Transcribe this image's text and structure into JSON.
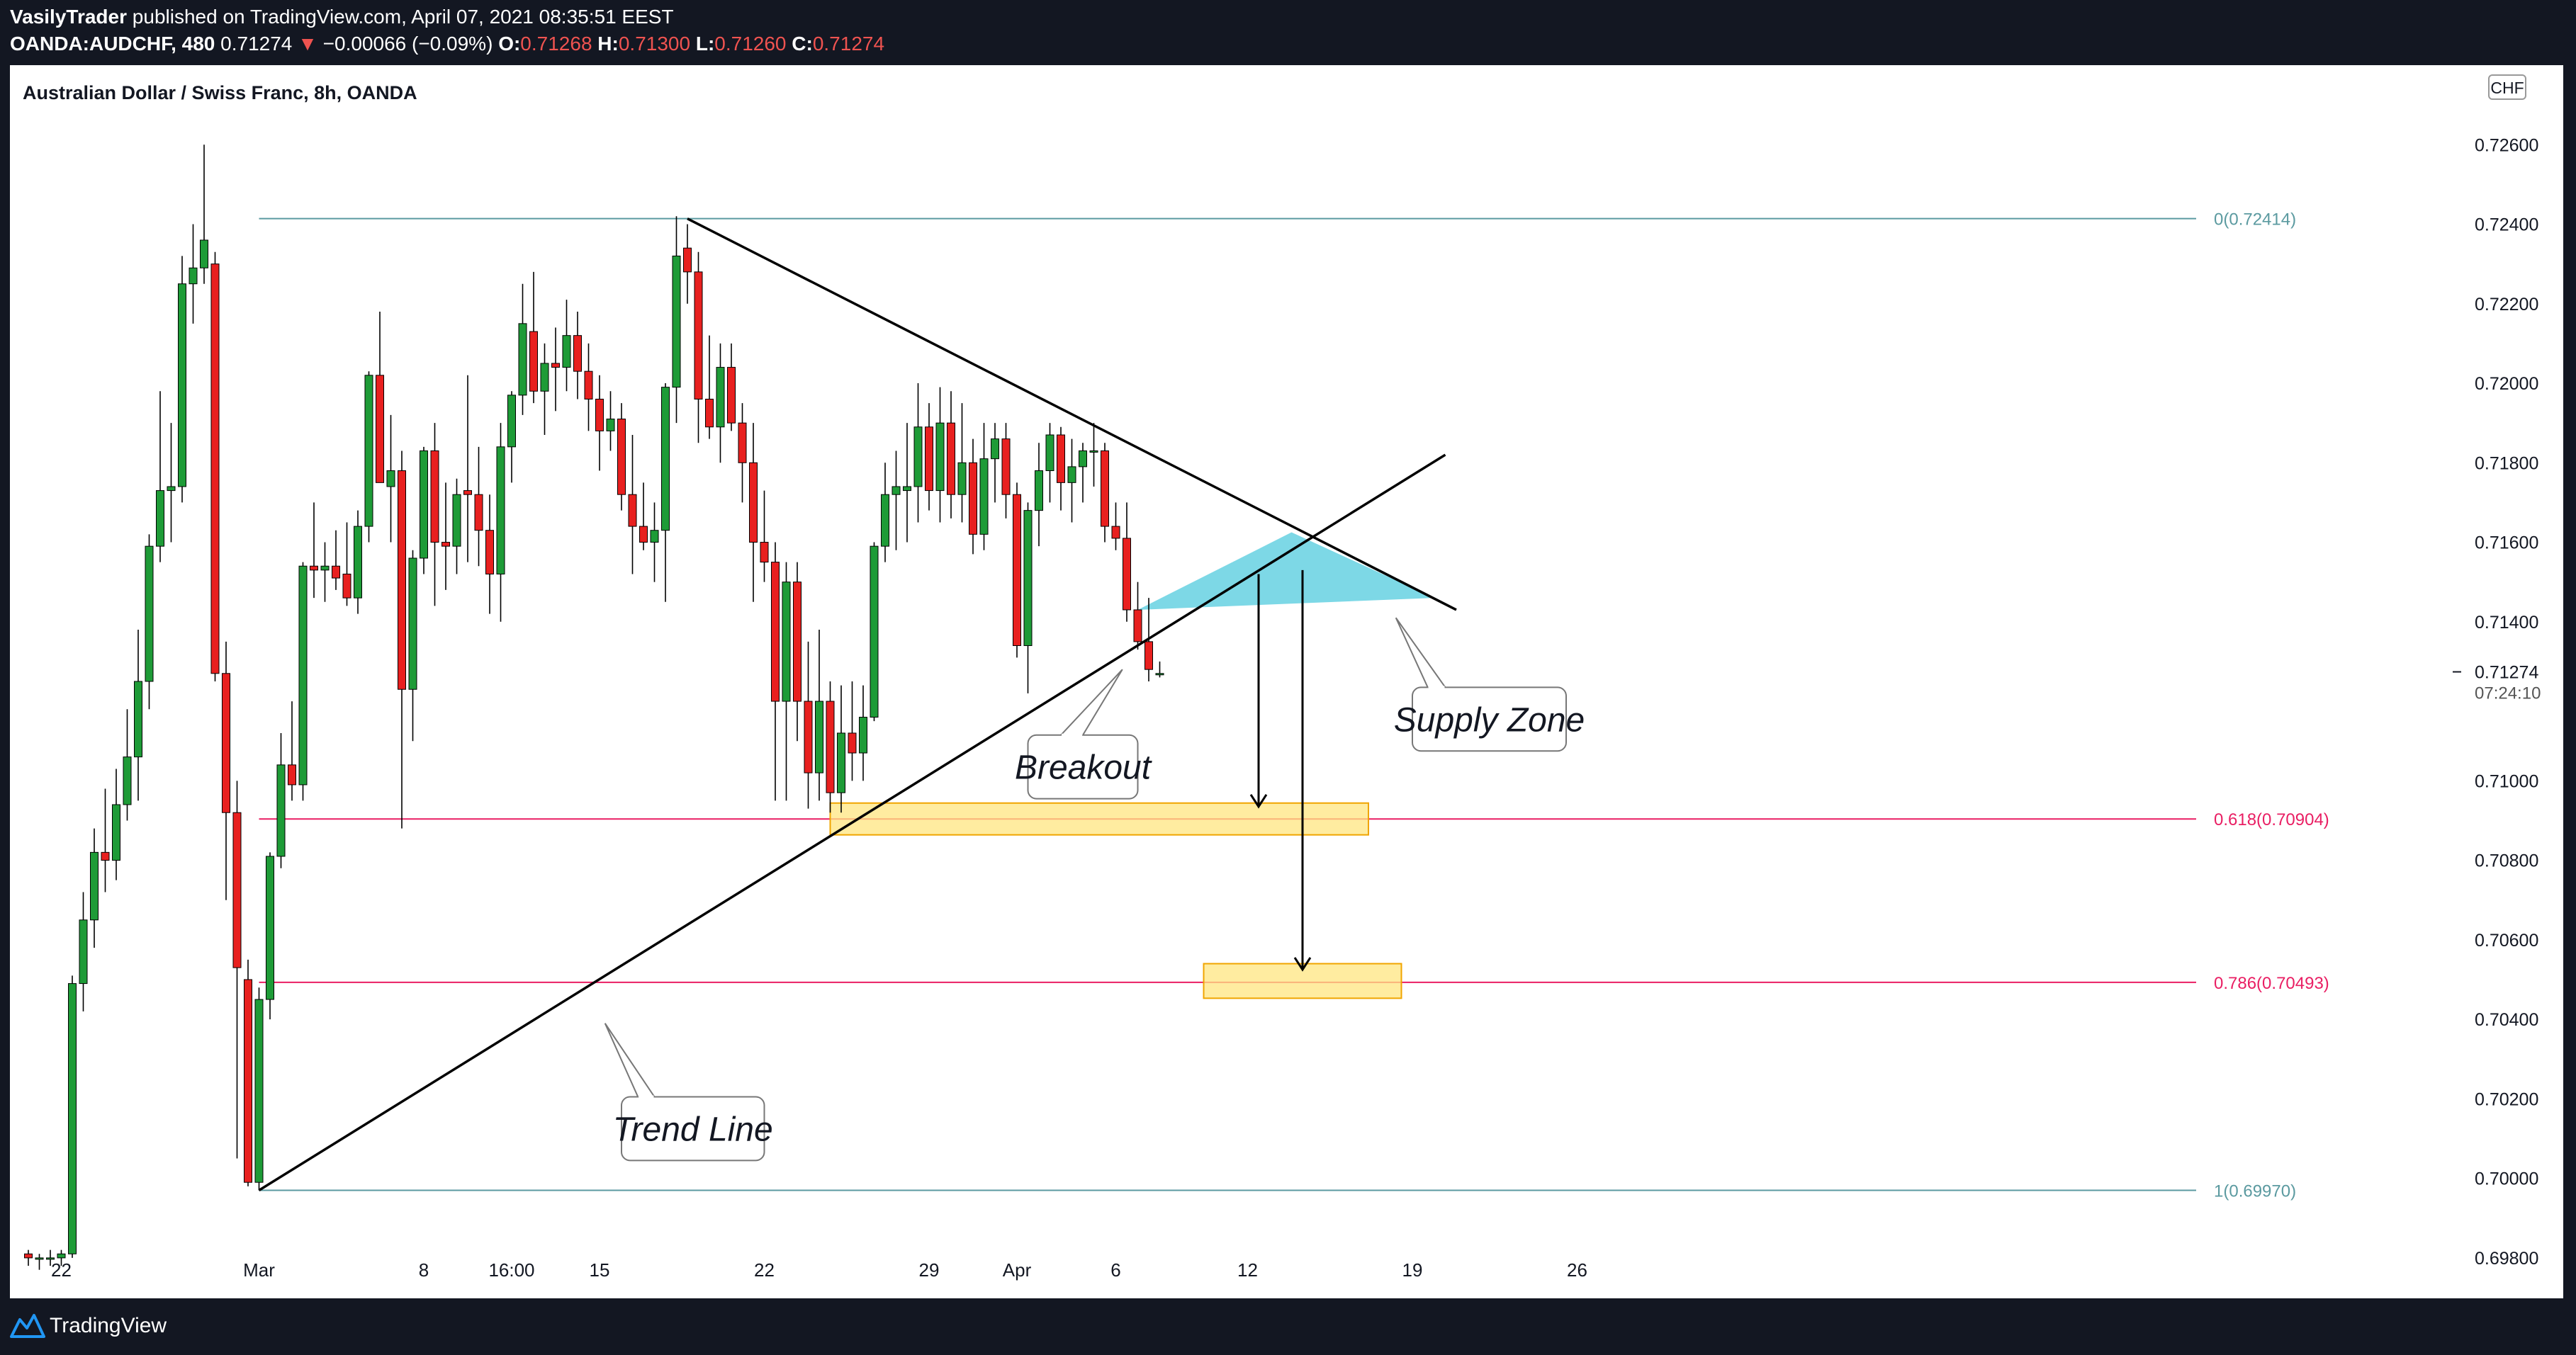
{
  "header": {
    "author": "VasilyTrader",
    "published": "published on TradingView.com, April 07, 2021 08:35:51 EEST",
    "symbol": "OANDA:AUDCHF, 480",
    "last": "0.71274",
    "change_arrow": "▼",
    "change": "−0.00066 (−0.09%)",
    "o_label": "O:",
    "o_value": "0.71268",
    "h_label": "H:",
    "h_value": "0.71300",
    "l_label": "L:",
    "l_value": "0.71260",
    "c_label": "C:",
    "c_value": "0.71274"
  },
  "footer": {
    "brand": "TradingView",
    "logo_icon": "tradingview-logo-icon"
  },
  "colors": {
    "up": "#1e9b37",
    "down": "#e8201f",
    "fib_mid": "#e91e63",
    "fib_edge": "#5b9aa0",
    "supply": "#7dd8e6",
    "target_fill": "#ffe680",
    "target_border": "#f0a500"
  },
  "chart_data": {
    "type": "candlestick",
    "title": "Australian Dollar / Swiss Franc, 8h, OANDA",
    "currency_badge": "CHF",
    "ylim": [
      0.697,
      0.728
    ],
    "y_ticks": [
      "0.72600",
      "0.72400",
      "0.72200",
      "0.72000",
      "0.71800",
      "0.71600",
      "0.71400",
      "0.71000",
      "0.70800",
      "0.70600",
      "0.70400",
      "0.70200",
      "0.70000",
      "0.69800"
    ],
    "x_ticks": [
      {
        "label": "22",
        "index": 3
      },
      {
        "label": "Mar",
        "index": 21
      },
      {
        "label": "8",
        "index": 36
      },
      {
        "label": "16:00",
        "index": 44
      },
      {
        "label": "15",
        "index": 52
      },
      {
        "label": "22",
        "index": 67
      },
      {
        "label": "29",
        "index": 82
      },
      {
        "label": "Apr",
        "index": 90
      },
      {
        "label": "6",
        "index": 99
      },
      {
        "label": "12",
        "index": 111
      },
      {
        "label": "19",
        "index": 126
      },
      {
        "label": "26",
        "index": 141
      }
    ],
    "last_price": {
      "value": 0.71274,
      "label": "0.71274",
      "countdown": "07:24:10"
    },
    "candles": [
      [
        0.6981,
        0.6982,
        0.6978,
        0.698
      ],
      [
        0.698,
        0.6981,
        0.6977,
        0.698
      ],
      [
        0.698,
        0.6982,
        0.6978,
        0.698
      ],
      [
        0.698,
        0.6982,
        0.6978,
        0.6981
      ],
      [
        0.6981,
        0.7051,
        0.698,
        0.7049
      ],
      [
        0.7049,
        0.7072,
        0.7042,
        0.7065
      ],
      [
        0.7065,
        0.7088,
        0.7058,
        0.7082
      ],
      [
        0.7082,
        0.7098,
        0.7072,
        0.708
      ],
      [
        0.708,
        0.7103,
        0.7075,
        0.7094
      ],
      [
        0.7094,
        0.7118,
        0.709,
        0.7106
      ],
      [
        0.7106,
        0.7138,
        0.7095,
        0.7125
      ],
      [
        0.7125,
        0.7162,
        0.7118,
        0.7159
      ],
      [
        0.7159,
        0.7198,
        0.7155,
        0.7173
      ],
      [
        0.7173,
        0.719,
        0.716,
        0.7174
      ],
      [
        0.7174,
        0.7232,
        0.717,
        0.7225
      ],
      [
        0.7225,
        0.724,
        0.7215,
        0.7229
      ],
      [
        0.7229,
        0.726,
        0.7225,
        0.7236
      ],
      [
        0.723,
        0.7233,
        0.7125,
        0.7127
      ],
      [
        0.7127,
        0.7135,
        0.707,
        0.7092
      ],
      [
        0.7092,
        0.71,
        0.7005,
        0.7053
      ],
      [
        0.705,
        0.7055,
        0.6998,
        0.6999
      ],
      [
        0.6999,
        0.7048,
        0.6997,
        0.7045
      ],
      [
        0.7045,
        0.7082,
        0.704,
        0.7081
      ],
      [
        0.7081,
        0.7112,
        0.7078,
        0.7104
      ],
      [
        0.7104,
        0.712,
        0.7095,
        0.7099
      ],
      [
        0.7099,
        0.7155,
        0.7095,
        0.7154
      ],
      [
        0.7154,
        0.717,
        0.7146,
        0.7153
      ],
      [
        0.7153,
        0.716,
        0.7145,
        0.7154
      ],
      [
        0.7154,
        0.7163,
        0.7148,
        0.7151
      ],
      [
        0.7152,
        0.7165,
        0.7144,
        0.7146
      ],
      [
        0.7146,
        0.7168,
        0.7142,
        0.7164
      ],
      [
        0.7164,
        0.7203,
        0.716,
        0.7202
      ],
      [
        0.7202,
        0.7218,
        0.7175,
        0.7175
      ],
      [
        0.7174,
        0.7192,
        0.716,
        0.7178
      ],
      [
        0.7178,
        0.7183,
        0.7088,
        0.7123
      ],
      [
        0.7123,
        0.7158,
        0.711,
        0.7156
      ],
      [
        0.7156,
        0.7184,
        0.7152,
        0.7183
      ],
      [
        0.7183,
        0.719,
        0.7144,
        0.716
      ],
      [
        0.716,
        0.7175,
        0.7148,
        0.7159
      ],
      [
        0.7159,
        0.7176,
        0.7152,
        0.7172
      ],
      [
        0.7173,
        0.7202,
        0.7155,
        0.7172
      ],
      [
        0.7172,
        0.7184,
        0.7154,
        0.7163
      ],
      [
        0.7163,
        0.7172,
        0.7142,
        0.7152
      ],
      [
        0.7152,
        0.719,
        0.714,
        0.7184
      ],
      [
        0.7184,
        0.7198,
        0.7175,
        0.7197
      ],
      [
        0.7197,
        0.7225,
        0.7192,
        0.7215
      ],
      [
        0.7213,
        0.7228,
        0.7195,
        0.7198
      ],
      [
        0.7198,
        0.721,
        0.7187,
        0.7205
      ],
      [
        0.7205,
        0.7214,
        0.7193,
        0.7204
      ],
      [
        0.7204,
        0.7221,
        0.7198,
        0.7212
      ],
      [
        0.7212,
        0.7218,
        0.7196,
        0.7203
      ],
      [
        0.7203,
        0.721,
        0.7188,
        0.7196
      ],
      [
        0.7196,
        0.7202,
        0.7178,
        0.7188
      ],
      [
        0.7188,
        0.7198,
        0.7183,
        0.7191
      ],
      [
        0.7191,
        0.7195,
        0.7168,
        0.7172
      ],
      [
        0.7172,
        0.7187,
        0.7152,
        0.7164
      ],
      [
        0.7164,
        0.7175,
        0.7158,
        0.716
      ],
      [
        0.716,
        0.717,
        0.715,
        0.7163
      ],
      [
        0.7163,
        0.72,
        0.7145,
        0.7199
      ],
      [
        0.7199,
        0.7242,
        0.719,
        0.7232
      ],
      [
        0.7234,
        0.724,
        0.722,
        0.7228
      ],
      [
        0.7228,
        0.7233,
        0.7185,
        0.7196
      ],
      [
        0.7196,
        0.7212,
        0.7186,
        0.7189
      ],
      [
        0.7189,
        0.721,
        0.718,
        0.7204
      ],
      [
        0.7204,
        0.721,
        0.7188,
        0.719
      ],
      [
        0.719,
        0.7195,
        0.717,
        0.718
      ],
      [
        0.718,
        0.719,
        0.7145,
        0.716
      ],
      [
        0.716,
        0.7173,
        0.715,
        0.7155
      ],
      [
        0.7155,
        0.716,
        0.7095,
        0.712
      ],
      [
        0.712,
        0.7155,
        0.7095,
        0.715
      ],
      [
        0.715,
        0.7155,
        0.711,
        0.712
      ],
      [
        0.712,
        0.7135,
        0.7093,
        0.7102
      ],
      [
        0.7102,
        0.7138,
        0.7095,
        0.712
      ],
      [
        0.712,
        0.7125,
        0.7092,
        0.7097
      ],
      [
        0.7097,
        0.7124,
        0.7092,
        0.7112
      ],
      [
        0.7112,
        0.7125,
        0.71,
        0.7107
      ],
      [
        0.7107,
        0.7124,
        0.71,
        0.7116
      ],
      [
        0.7116,
        0.716,
        0.7115,
        0.7159
      ],
      [
        0.7159,
        0.718,
        0.7155,
        0.7172
      ],
      [
        0.7172,
        0.7183,
        0.7158,
        0.7174
      ],
      [
        0.7173,
        0.719,
        0.716,
        0.7174
      ],
      [
        0.7174,
        0.72,
        0.7165,
        0.7189
      ],
      [
        0.7189,
        0.7195,
        0.7168,
        0.7173
      ],
      [
        0.7173,
        0.7199,
        0.7165,
        0.719
      ],
      [
        0.719,
        0.7198,
        0.7166,
        0.7172
      ],
      [
        0.7172,
        0.7195,
        0.7165,
        0.718
      ],
      [
        0.718,
        0.7186,
        0.7157,
        0.7162
      ],
      [
        0.7162,
        0.719,
        0.7158,
        0.7181
      ],
      [
        0.7181,
        0.719,
        0.717,
        0.7186
      ],
      [
        0.7186,
        0.719,
        0.7166,
        0.7172
      ],
      [
        0.7172,
        0.7175,
        0.7131,
        0.7134
      ],
      [
        0.7134,
        0.717,
        0.7122,
        0.7168
      ],
      [
        0.7168,
        0.7185,
        0.7159,
        0.7178
      ],
      [
        0.7178,
        0.719,
        0.717,
        0.7187
      ],
      [
        0.7187,
        0.7189,
        0.7168,
        0.7175
      ],
      [
        0.7175,
        0.7186,
        0.7165,
        0.7179
      ],
      [
        0.7179,
        0.7185,
        0.717,
        0.7183
      ],
      [
        0.7183,
        0.719,
        0.7174,
        0.7183
      ],
      [
        0.7183,
        0.7185,
        0.716,
        0.7164
      ],
      [
        0.7164,
        0.717,
        0.7158,
        0.7161
      ],
      [
        0.7161,
        0.717,
        0.714,
        0.7143
      ],
      [
        0.7143,
        0.715,
        0.7133,
        0.7135
      ],
      [
        0.7135,
        0.7146,
        0.7125,
        0.7128
      ],
      [
        0.7127,
        0.713,
        0.7126,
        0.7127
      ]
    ],
    "fib_levels": [
      {
        "label": "0(0.72414)",
        "value": 0.72414,
        "x_start": 21
      },
      {
        "label": "0.618(0.70904)",
        "value": 0.70904,
        "x_start": 21
      },
      {
        "label": "0.786(0.70493)",
        "value": 0.70493,
        "x_start": 21
      },
      {
        "label": "1(0.69970)",
        "value": 0.6997,
        "x_start": 21
      }
    ],
    "trendlines": [
      {
        "name": "descending",
        "from": [
          60,
          0.72414
        ],
        "to": [
          130,
          0.7143
        ]
      },
      {
        "name": "ascending",
        "from": [
          21,
          0.6997
        ],
        "to": [
          129,
          0.7182
        ]
      }
    ],
    "supply_zone": {
      "label": "Supply Zone",
      "points": [
        [
          101,
          0.7143
        ],
        [
          115,
          0.71625
        ],
        [
          128,
          0.7146
        ]
      ]
    },
    "target_zones": [
      {
        "x_from": 73,
        "x_to": 122,
        "y_from": 0.70864,
        "y_to": 0.70944
      },
      {
        "x_from": 107,
        "x_to": 125,
        "y_from": 0.70453,
        "y_to": 0.7054
      }
    ],
    "arrows": [
      {
        "x": 112,
        "from": 0.7152,
        "to": 0.70935
      },
      {
        "x": 116,
        "from": 0.7153,
        "to": 0.70525
      }
    ],
    "callouts": [
      {
        "text": "Breakout",
        "box_x": [
          91,
          101
        ],
        "box_y": [
          0.71115,
          0.70955
        ],
        "tail": [
          [
            94,
            0.71115
          ],
          [
            99.6,
            0.7128
          ],
          [
            96,
            0.71115
          ]
        ]
      },
      {
        "text": "Supply Zone",
        "box_x": [
          126,
          140
        ],
        "box_y": [
          0.71235,
          0.71075
        ],
        "tail": [
          [
            127.4,
            0.71235
          ],
          [
            124.5,
            0.7141
          ],
          [
            129,
            0.71235
          ]
        ]
      },
      {
        "text": "Trend Line",
        "box_x": [
          54,
          67
        ],
        "box_y": [
          0.70205,
          0.70045
        ],
        "tail": [
          [
            55.5,
            0.70205
          ],
          [
            52.5,
            0.7039
          ],
          [
            57,
            0.70205
          ]
        ]
      }
    ]
  }
}
